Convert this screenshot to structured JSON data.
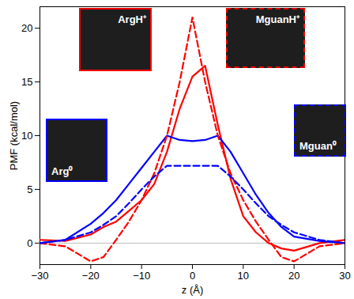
{
  "chart_data": {
    "type": "line",
    "x_label": "z (Å)",
    "y_label": "PMF (kcal/mol)",
    "x": [
      -30,
      -25,
      -20,
      -17.5,
      -15,
      -12.5,
      -10,
      -7.5,
      -5,
      -2.5,
      0,
      2.5,
      5,
      7.5,
      10,
      12.5,
      15,
      17.5,
      20,
      25,
      30
    ],
    "series": [
      {
        "name": "ArgH⁺",
        "color": "#ff0000",
        "line_style": "solid",
        "values": [
          0.3,
          0.2,
          0.8,
          1.5,
          2,
          3,
          4,
          5.5,
          8.5,
          12.5,
          15.5,
          16.5,
          11,
          6,
          2.5,
          1,
          0,
          -0.5,
          -0.7,
          0,
          0.3
        ]
      },
      {
        "name": "Arg⁰",
        "color": "#0000ff",
        "line_style": "solid",
        "values": [
          0,
          0.3,
          1.8,
          2.8,
          4,
          5.5,
          7,
          8.5,
          10,
          9.6,
          9.5,
          9.6,
          10,
          8.5,
          6.5,
          4.5,
          2.8,
          1.5,
          0.6,
          0.2,
          0
        ]
      },
      {
        "name": "MguanH⁺",
        "color": "#ff0000",
        "line_style": "dashed",
        "values": [
          0,
          -0.3,
          -1.7,
          -1.3,
          0.3,
          2,
          4,
          6.5,
          10,
          15,
          21,
          15,
          10,
          6.5,
          4,
          2,
          0.3,
          -1.3,
          -1.7,
          -0.3,
          0
        ]
      },
      {
        "name": "Mguan⁰",
        "color": "#0000ff",
        "line_style": "dashed",
        "values": [
          0,
          0.3,
          1,
          1.7,
          2.5,
          3.7,
          5,
          6.2,
          7.2,
          7.2,
          7.2,
          7.2,
          7.2,
          6.2,
          5,
          3.7,
          2.5,
          1.7,
          1,
          0.3,
          0
        ]
      }
    ],
    "xlim": [
      -30,
      30
    ],
    "xticks": [
      -30,
      -20,
      -10,
      0,
      10,
      20,
      30
    ],
    "ylim": [
      -2,
      22
    ],
    "yticks": [
      0,
      5,
      10,
      15,
      20
    ],
    "grid": false
  }
}
